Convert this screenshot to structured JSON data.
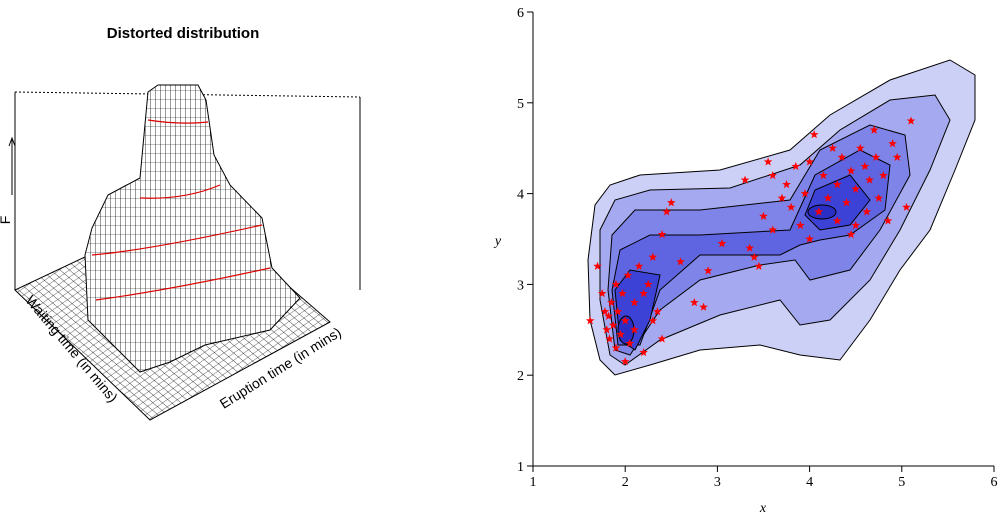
{
  "chart_data": [
    {
      "type": "surface3d",
      "title": "Distorted distribution",
      "xlabel": "Eruption time (in mins)",
      "ylabel": "Waiting time (in mins)",
      "zlabel": "F"
    },
    {
      "type": "scatter",
      "xlabel": "x",
      "ylabel": "y",
      "color": "#ff0000",
      "xlim": [
        1,
        6
      ],
      "ylim": [
        1,
        6
      ],
      "xticks": [
        1,
        2,
        3,
        4,
        5,
        6
      ],
      "yticks": [
        1,
        2,
        3,
        4,
        5,
        6
      ],
      "x": [
        1.62,
        1.7,
        1.75,
        1.78,
        1.8,
        1.82,
        1.83,
        1.85,
        1.87,
        1.9,
        1.9,
        1.92,
        1.95,
        1.97,
        2.0,
        2.0,
        2.03,
        2.05,
        2.1,
        2.1,
        2.15,
        2.2,
        2.2,
        2.25,
        2.3,
        2.35,
        2.4,
        2.45,
        2.4,
        2.6,
        2.75,
        2.85,
        2.9,
        2.3,
        2.5,
        3.05,
        3.3,
        3.35,
        3.4,
        3.45,
        3.5,
        3.55,
        3.6,
        3.6,
        3.7,
        3.75,
        3.8,
        3.85,
        3.9,
        3.95,
        4.0,
        4.05,
        4.1,
        4.15,
        4.2,
        4.25,
        4.3,
        4.3,
        4.35,
        4.4,
        4.45,
        4.5,
        4.5,
        4.55,
        4.6,
        4.62,
        4.65,
        4.7,
        4.72,
        4.75,
        4.8,
        4.85,
        4.9,
        4.95,
        5.05,
        5.1,
        4.0,
        4.45
      ],
      "values": [
        2.6,
        3.2,
        2.9,
        2.7,
        2.5,
        2.65,
        2.4,
        2.8,
        2.55,
        2.3,
        3.0,
        2.7,
        2.45,
        2.9,
        2.6,
        2.15,
        3.1,
        2.35,
        2.8,
        2.5,
        3.2,
        2.9,
        2.25,
        3.0,
        2.6,
        2.7,
        3.55,
        3.8,
        2.4,
        3.25,
        2.8,
        2.75,
        3.15,
        3.3,
        3.9,
        3.45,
        4.15,
        3.4,
        3.3,
        3.2,
        3.75,
        4.35,
        3.6,
        4.2,
        3.95,
        4.1,
        3.85,
        4.3,
        3.65,
        4.0,
        3.5,
        4.65,
        3.8,
        4.2,
        3.95,
        4.5,
        4.1,
        3.7,
        4.4,
        3.9,
        4.25,
        4.05,
        3.65,
        4.5,
        4.3,
        3.8,
        4.15,
        4.7,
        4.4,
        3.95,
        4.2,
        3.7,
        4.55,
        4.4,
        3.85,
        4.8,
        4.35,
        3.55
      ]
    }
  ]
}
